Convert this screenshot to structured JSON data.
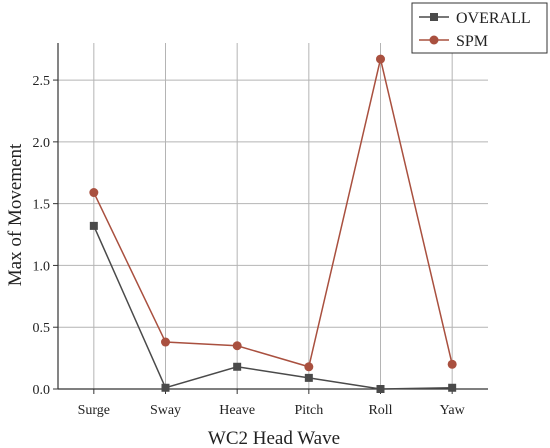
{
  "chart_data": {
    "type": "line",
    "categories": [
      "Surge",
      "Sway",
      "Heave",
      "Pitch",
      "Roll",
      "Yaw"
    ],
    "series": [
      {
        "name": "OVERALL",
        "values": [
          1.32,
          0.01,
          0.18,
          0.09,
          0.0,
          0.01
        ],
        "color": "#4a4a4a",
        "marker": "square"
      },
      {
        "name": "SPM",
        "values": [
          1.59,
          0.38,
          0.35,
          0.18,
          2.67,
          0.2
        ],
        "color": "#a9503f",
        "marker": "circle"
      }
    ],
    "xlabel": "WC2 Head Wave",
    "ylabel": "Max of Movement",
    "ylim": [
      0,
      2.8
    ],
    "yticks": [
      "0.0",
      "0.5",
      "1.0",
      "1.5",
      "2.0",
      "2.5"
    ],
    "grid": true,
    "legend_position": "top-right"
  }
}
